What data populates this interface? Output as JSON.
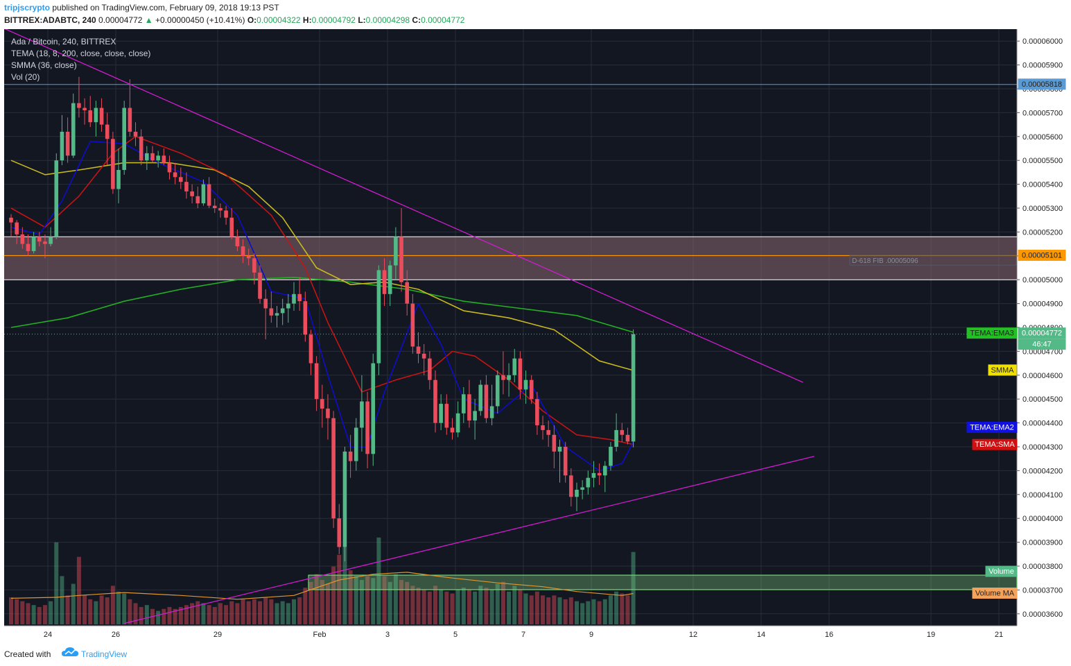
{
  "header": {
    "author": "tripjscrypto",
    "published": "published on TradingView.com, February 09, 2018 19:13 PST",
    "symbol": "BITTREX:ADABTC, 240",
    "last": "0.00004772",
    "change": "+0.00000450 (+10.41%)",
    "o_label": "O:",
    "o": "0.00004322",
    "h_label": "H:",
    "h": "0.00004792",
    "l_label": "L:",
    "l": "0.00004298",
    "c_label": "C:",
    "c": "0.00004772"
  },
  "legend": {
    "title": "Ada / Bitcoin, 240, BITTREX",
    "tema": "TEMA (18, 8, 200, close, close, close)",
    "smma": "SMMA (36, close)",
    "vol": "Vol (20)"
  },
  "footer": {
    "created": "Created with",
    "brand": "TradingView"
  },
  "colors": {
    "background": "#131722",
    "grid": "#2a2e39",
    "up": "#53b987",
    "down": "#eb4d5c",
    "ema3": "#22b022",
    "ema2": "#0d0dcc",
    "sma": "#c41414",
    "smma": "#c8b820",
    "trendline": "#d01cd0",
    "zone": "#7c6068",
    "level": "#ff9800",
    "volzone": "#6fd86f"
  },
  "chart_data": {
    "type": "candlestick",
    "ylim": [
      3.55e-05,
      6.05e-05
    ],
    "price_ticks": [
      "0.00006000",
      "0.00005900",
      "0.00005800",
      "0.00005700",
      "0.00005600",
      "0.00005500",
      "0.00005400",
      "0.00005300",
      "0.00005200",
      "0.00005100",
      "0.00005000",
      "0.00004900",
      "0.00004800",
      "0.00004700",
      "0.00004600",
      "0.00004500",
      "0.00004400",
      "0.00004300",
      "0.00004200",
      "0.00004100",
      "0.00004000",
      "0.00003900",
      "0.00003800",
      "0.00003700",
      "0.00003600"
    ],
    "x_ticks": [
      "24",
      "26",
      "29",
      "Feb",
      "3",
      "5",
      "7",
      "9",
      "12",
      "14",
      "16",
      "19",
      "21"
    ],
    "price_tags": {
      "hline": "0.00005818",
      "fib": "D-618 FIB .00005096",
      "level": "0.00005101",
      "ema3_label": "TEMA:EMA3",
      "last": "0.00004772",
      "countdown": "46:47",
      "smma_label": "SMMA",
      "ema2_label": "TEMA:EMA2",
      "sma_label": "TEMA:SMA",
      "volume_label": "Volume",
      "volume_ma_label": "Volume MA"
    },
    "candles": [
      [
        5.26e-05,
        5.275e-05,
        5.18e-05,
        5.24e-05,
        28
      ],
      [
        5.24e-05,
        5.25e-05,
        5.15e-05,
        5.19e-05,
        26
      ],
      [
        5.19e-05,
        5.22e-05,
        5.13e-05,
        5.15e-05,
        24
      ],
      [
        5.15e-05,
        5.19e-05,
        5.1e-05,
        5.12e-05,
        22
      ],
      [
        5.12e-05,
        5.2e-05,
        5.11e-05,
        5.18e-05,
        20
      ],
      [
        5.18e-05,
        5.2e-05,
        5.14e-05,
        5.16e-05,
        18
      ],
      [
        5.16e-05,
        5.19e-05,
        5.09e-05,
        5.15e-05,
        20
      ],
      [
        5.15e-05,
        5.22e-05,
        5.14e-05,
        5.18e-05,
        24
      ],
      [
        5.18e-05,
        5.53e-05,
        5.17e-05,
        5.5e-05,
        85
      ],
      [
        5.5e-05,
        5.69e-05,
        5.48e-05,
        5.62e-05,
        50
      ],
      [
        5.62e-05,
        5.68e-05,
        5.49e-05,
        5.52e-05,
        30
      ],
      [
        5.52e-05,
        5.78e-05,
        5.51e-05,
        5.74e-05,
        42
      ],
      [
        5.74e-05,
        5.85e-05,
        5.68e-05,
        5.72e-05,
        70
      ],
      [
        5.72e-05,
        5.76e-05,
        5.65e-05,
        5.71e-05,
        30
      ],
      [
        5.71e-05,
        5.77e-05,
        5.64e-05,
        5.66e-05,
        26
      ],
      [
        5.66e-05,
        5.75e-05,
        5.6e-05,
        5.72e-05,
        24
      ],
      [
        5.72e-05,
        5.76e-05,
        5.62e-05,
        5.65e-05,
        30
      ],
      [
        5.65e-05,
        5.7e-05,
        5.48e-05,
        5.59e-05,
        28
      ],
      [
        5.59e-05,
        5.62e-05,
        5.36e-05,
        5.38e-05,
        40
      ],
      [
        5.38e-05,
        5.55e-05,
        5.32e-05,
        5.46e-05,
        34
      ],
      [
        5.46e-05,
        5.75e-05,
        5.44e-05,
        5.72e-05,
        32
      ],
      [
        5.72e-05,
        5.84e-05,
        5.6e-05,
        5.62e-05,
        26
      ],
      [
        5.62e-05,
        5.66e-05,
        5.56e-05,
        5.6e-05,
        22
      ],
      [
        5.6e-05,
        5.63e-05,
        5.48e-05,
        5.5e-05,
        18
      ],
      [
        5.5e-05,
        5.56e-05,
        5.46e-05,
        5.53e-05,
        20
      ],
      [
        5.53e-05,
        5.56e-05,
        5.49e-05,
        5.5e-05,
        16
      ],
      [
        5.5e-05,
        5.54e-05,
        5.47e-05,
        5.52e-05,
        14
      ],
      [
        5.52e-05,
        5.55e-05,
        5.48e-05,
        5.49e-05,
        16
      ],
      [
        5.49e-05,
        5.52e-05,
        5.42e-05,
        5.45e-05,
        18
      ],
      [
        5.45e-05,
        5.49e-05,
        5.4e-05,
        5.43e-05,
        16
      ],
      [
        5.43e-05,
        5.47e-05,
        5.38e-05,
        5.41e-05,
        18
      ],
      [
        5.41e-05,
        5.45e-05,
        5.34e-05,
        5.37e-05,
        20
      ],
      [
        5.37e-05,
        5.4e-05,
        5.32e-05,
        5.35e-05,
        22
      ],
      [
        5.35e-05,
        5.39e-05,
        5.3e-05,
        5.32e-05,
        24
      ],
      [
        5.32e-05,
        5.42e-05,
        5.31e-05,
        5.4e-05,
        22
      ],
      [
        5.4e-05,
        5.43e-05,
        5.3e-05,
        5.31e-05,
        20
      ],
      [
        5.31e-05,
        5.34e-05,
        5.28e-05,
        5.3e-05,
        18
      ],
      [
        5.3e-05,
        5.32e-05,
        5.26e-05,
        5.29e-05,
        22
      ],
      [
        5.29e-05,
        5.31e-05,
        5.23e-05,
        5.26e-05,
        20
      ],
      [
        5.26e-05,
        5.3e-05,
        5.17e-05,
        5.18e-05,
        24
      ],
      [
        5.18e-05,
        5.21e-05,
        5.12e-05,
        5.14e-05,
        22
      ],
      [
        5.14e-05,
        5.17e-05,
        5.07e-05,
        5.1e-05,
        26
      ],
      [
        5.1e-05,
        5.13e-05,
        5.06e-05,
        5.09e-05,
        24
      ],
      [
        5.09e-05,
        5.11e-05,
        4.98e-05,
        5.03e-05,
        26
      ],
      [
        5.03e-05,
        5.06e-05,
        4.9e-05,
        4.92e-05,
        24
      ],
      [
        4.92e-05,
        4.96e-05,
        4.75e-05,
        4.88e-05,
        28
      ],
      [
        4.88e-05,
        4.95e-05,
        4.82e-05,
        4.85e-05,
        26
      ],
      [
        4.85e-05,
        4.89e-05,
        4.8e-05,
        4.86e-05,
        22
      ],
      [
        4.86e-05,
        4.92e-05,
        4.81e-05,
        4.88e-05,
        24
      ],
      [
        4.88e-05,
        4.94e-05,
        4.82e-05,
        4.9e-05,
        22
      ],
      [
        4.9e-05,
        4.99e-05,
        4.87e-05,
        4.94e-05,
        26
      ],
      [
        4.94e-05,
        5.01e-05,
        4.87e-05,
        4.91e-05,
        28
      ],
      [
        4.91e-05,
        4.95e-05,
        4.74e-05,
        4.77e-05,
        38
      ],
      [
        4.77e-05,
        4.79e-05,
        4.6e-05,
        4.65e-05,
        44
      ],
      [
        4.65e-05,
        4.68e-05,
        4.45e-05,
        4.5e-05,
        52
      ],
      [
        4.5e-05,
        4.56e-05,
        4.38e-05,
        4.46e-05,
        46
      ],
      [
        4.46e-05,
        4.52e-05,
        4.33e-05,
        4.42e-05,
        42
      ],
      [
        4.42e-05,
        4.45e-05,
        3.96e-05,
        4e-05,
        60
      ],
      [
        4e-05,
        4.06e-05,
        3.85e-05,
        3.88e-05,
        72
      ],
      [
        3.88e-05,
        4.3e-05,
        3.82e-05,
        4.28e-05,
        80
      ],
      [
        4.28e-05,
        4.35e-05,
        4.17e-05,
        4.24e-05,
        56
      ],
      [
        4.24e-05,
        4.42e-05,
        4.2e-05,
        4.38e-05,
        50
      ],
      [
        4.38e-05,
        4.6e-05,
        4.28e-05,
        4.49e-05,
        46
      ],
      [
        4.49e-05,
        4.53e-05,
        4.21e-05,
        4.27e-05,
        50
      ],
      [
        4.27e-05,
        4.69e-05,
        4.22e-05,
        4.65e-05,
        48
      ],
      [
        4.65e-05,
        5.06e-05,
        4.6e-05,
        5.04e-05,
        90
      ],
      [
        5.04e-05,
        5.09e-05,
        4.89e-05,
        4.94e-05,
        50
      ],
      [
        4.94e-05,
        5.08e-05,
        4.89e-05,
        5.06e-05,
        44
      ],
      [
        5.06e-05,
        5.22e-05,
        5e-05,
        5.18e-05,
        52
      ],
      [
        5.18e-05,
        5.3e-05,
        4.95e-05,
        4.99e-05,
        46
      ],
      [
        4.99e-05,
        5.04e-05,
        4.85e-05,
        4.9e-05,
        44
      ],
      [
        4.9e-05,
        4.94e-05,
        4.69e-05,
        4.72e-05,
        40
      ],
      [
        4.72e-05,
        4.78e-05,
        4.65e-05,
        4.69e-05,
        38
      ],
      [
        4.69e-05,
        4.73e-05,
        4.6e-05,
        4.67e-05,
        36
      ],
      [
        4.67e-05,
        4.7e-05,
        4.54e-05,
        4.58e-05,
        34
      ],
      [
        4.58e-05,
        4.62e-05,
        4.36e-05,
        4.4e-05,
        40
      ],
      [
        4.4e-05,
        4.52e-05,
        4.37e-05,
        4.48e-05,
        36
      ],
      [
        4.48e-05,
        4.52e-05,
        4.35e-05,
        4.38e-05,
        34
      ],
      [
        4.38e-05,
        4.42e-05,
        4.33e-05,
        4.36e-05,
        32
      ],
      [
        4.36e-05,
        4.49e-05,
        4.34e-05,
        4.44e-05,
        36
      ],
      [
        4.44e-05,
        4.55e-05,
        4.4e-05,
        4.52e-05,
        38
      ],
      [
        4.52e-05,
        4.58e-05,
        4.38e-05,
        4.41e-05,
        36
      ],
      [
        4.41e-05,
        4.5e-05,
        4.33e-05,
        4.45e-05,
        34
      ],
      [
        4.45e-05,
        4.58e-05,
        4.43e-05,
        4.56e-05,
        40
      ],
      [
        4.56e-05,
        4.6e-05,
        4.4e-05,
        4.42e-05,
        38
      ],
      [
        4.42e-05,
        4.56e-05,
        4.39e-05,
        4.47e-05,
        36
      ],
      [
        4.47e-05,
        4.62e-05,
        4.44e-05,
        4.6e-05,
        42
      ],
      [
        4.6e-05,
        4.7e-05,
        4.52e-05,
        4.58e-05,
        44
      ],
      [
        4.58e-05,
        4.65e-05,
        4.51e-05,
        4.6e-05,
        34
      ],
      [
        4.6e-05,
        4.71e-05,
        4.57e-05,
        4.67e-05,
        40
      ],
      [
        4.67e-05,
        4.7e-05,
        4.5e-05,
        4.54e-05,
        36
      ],
      [
        4.54e-05,
        4.62e-05,
        4.48e-05,
        4.58e-05,
        32
      ],
      [
        4.58e-05,
        4.6e-05,
        4.48e-05,
        4.5e-05,
        30
      ],
      [
        4.5e-05,
        4.53e-05,
        4.35e-05,
        4.39e-05,
        34
      ],
      [
        4.39e-05,
        4.43e-05,
        4.33e-05,
        4.37e-05,
        30
      ],
      [
        4.37e-05,
        4.41e-05,
        4.3e-05,
        4.35e-05,
        28
      ],
      [
        4.35e-05,
        4.39e-05,
        4.21e-05,
        4.28e-05,
        30
      ],
      [
        4.28e-05,
        4.33e-05,
        4.15e-05,
        4.3e-05,
        28
      ],
      [
        4.3e-05,
        4.32e-05,
        4.15e-05,
        4.18e-05,
        26
      ],
      [
        4.18e-05,
        4.21e-05,
        4.05e-05,
        4.09e-05,
        28
      ],
      [
        4.09e-05,
        4.15e-05,
        4.03e-05,
        4.12e-05,
        24
      ],
      [
        4.12e-05,
        4.16e-05,
        4.08e-05,
        4.13e-05,
        22
      ],
      [
        4.13e-05,
        4.2e-05,
        4.1e-05,
        4.17e-05,
        24
      ],
      [
        4.17e-05,
        4.24e-05,
        4.13e-05,
        4.19e-05,
        26
      ],
      [
        4.19e-05,
        4.23e-05,
        4.14e-05,
        4.18e-05,
        24
      ],
      [
        4.18e-05,
        4.24e-05,
        4.11e-05,
        4.22e-05,
        26
      ],
      [
        4.22e-05,
        4.32e-05,
        4.2e-05,
        4.3e-05,
        30
      ],
      [
        4.3e-05,
        4.44e-05,
        4.28e-05,
        4.37e-05,
        34
      ],
      [
        4.37e-05,
        4.4e-05,
        4.32e-05,
        4.35e-05,
        32
      ],
      [
        4.35e-05,
        4.38e-05,
        4.31e-05,
        4.322e-05,
        30
      ],
      [
        4.322e-05,
        4.792e-05,
        4.298e-05,
        4.772e-05,
        75
      ]
    ],
    "overlays": {
      "ema3": [
        [
          0,
          4.8e-05
        ],
        [
          10,
          4.84e-05
        ],
        [
          20,
          4.91e-05
        ],
        [
          30,
          4.96e-05
        ],
        [
          40,
          5e-05
        ],
        [
          50,
          5.01e-05
        ],
        [
          60,
          4.99e-05
        ],
        [
          70,
          4.96e-05
        ],
        [
          80,
          4.91e-05
        ],
        [
          90,
          4.88e-05
        ],
        [
          100,
          4.85e-05
        ],
        [
          110,
          4.78e-05
        ]
      ],
      "smma": [
        [
          0,
          5.5e-05
        ],
        [
          6,
          5.44e-05
        ],
        [
          12,
          5.46e-05
        ],
        [
          20,
          5.49e-05
        ],
        [
          28,
          5.49e-05
        ],
        [
          36,
          5.46e-05
        ],
        [
          42,
          5.39e-05
        ],
        [
          48,
          5.26e-05
        ],
        [
          54,
          5.05e-05
        ],
        [
          60,
          4.98e-05
        ],
        [
          66,
          4.99e-05
        ],
        [
          72,
          4.96e-05
        ],
        [
          80,
          4.87e-05
        ],
        [
          88,
          4.84e-05
        ],
        [
          96,
          4.79e-05
        ],
        [
          104,
          4.66e-05
        ],
        [
          110,
          4.62e-05
        ]
      ],
      "sma": [
        [
          0,
          5.3e-05
        ],
        [
          6,
          5.22e-05
        ],
        [
          12,
          5.35e-05
        ],
        [
          18,
          5.53e-05
        ],
        [
          22,
          5.6e-05
        ],
        [
          30,
          5.53e-05
        ],
        [
          38,
          5.44e-05
        ],
        [
          46,
          5.27e-05
        ],
        [
          52,
          5.05e-05
        ],
        [
          56,
          4.82e-05
        ],
        [
          62,
          4.53e-05
        ],
        [
          68,
          4.58e-05
        ],
        [
          74,
          4.62e-05
        ],
        [
          78,
          4.7e-05
        ],
        [
          82,
          4.68e-05
        ],
        [
          88,
          4.58e-05
        ],
        [
          94,
          4.45e-05
        ],
        [
          100,
          4.35e-05
        ],
        [
          106,
          4.33e-05
        ],
        [
          110,
          4.31e-05
        ]
      ],
      "ema2": [
        [
          0,
          5.22e-05
        ],
        [
          5,
          5.19e-05
        ],
        [
          9,
          5.33e-05
        ],
        [
          14,
          5.58e-05
        ],
        [
          20,
          5.57e-05
        ],
        [
          26,
          5.49e-05
        ],
        [
          34,
          5.41e-05
        ],
        [
          40,
          5.27e-05
        ],
        [
          46,
          4.95e-05
        ],
        [
          52,
          4.92e-05
        ],
        [
          56,
          4.6e-05
        ],
        [
          60,
          4.3e-05
        ],
        [
          63,
          4.3e-05
        ],
        [
          66,
          4.53e-05
        ],
        [
          72,
          4.9e-05
        ],
        [
          76,
          4.73e-05
        ],
        [
          80,
          4.5e-05
        ],
        [
          86,
          4.44e-05
        ],
        [
          92,
          4.56e-05
        ],
        [
          98,
          4.3e-05
        ],
        [
          104,
          4.2e-05
        ],
        [
          108,
          4.23e-05
        ],
        [
          110,
          4.32e-05
        ]
      ],
      "volume_ma": [
        [
          0,
          27
        ],
        [
          8,
          28
        ],
        [
          12,
          30
        ],
        [
          20,
          33
        ],
        [
          30,
          30
        ],
        [
          40,
          26
        ],
        [
          50,
          30
        ],
        [
          58,
          46
        ],
        [
          64,
          52
        ],
        [
          70,
          54
        ],
        [
          78,
          48
        ],
        [
          86,
          43
        ],
        [
          94,
          39
        ],
        [
          100,
          34
        ],
        [
          108,
          30
        ],
        [
          110,
          32
        ]
      ]
    },
    "trendlines": [
      {
        "x1": -10.5,
        "y1": 6.15e-05,
        "x2": 140,
        "y2": 4.57e-05
      },
      {
        "x1": 20,
        "y1": 3.56e-05,
        "x2": 142,
        "y2": 4.26e-05
      }
    ],
    "zone": [
      5e-05,
      5.18e-05
    ],
    "level": 5.101e-05,
    "hline": 5.818e-05,
    "fib_level": 5.096e-05,
    "volume_zone": [
      36,
      51
    ],
    "vol_max": 92
  }
}
